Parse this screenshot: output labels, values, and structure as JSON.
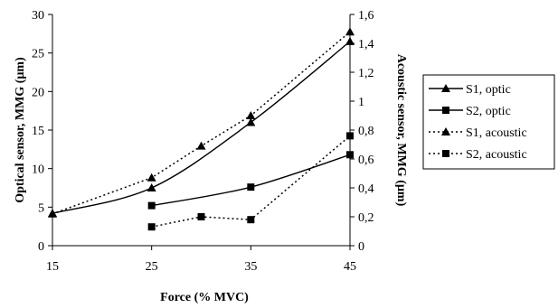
{
  "chart_data": {
    "type": "line",
    "title": "",
    "xlabel": "Force (% MVC)",
    "ylabel_left": "Optical sensor, MMG (µm)",
    "ylabel_right": "Acoustic sensor, MMG (µm)",
    "xlim": [
      15,
      45
    ],
    "x_ticks": [
      "15",
      "25",
      "35",
      "45"
    ],
    "ylim_left": [
      0,
      30
    ],
    "y_ticks_left": [
      "0",
      "5",
      "10",
      "15",
      "20",
      "25",
      "30"
    ],
    "ylim_right": [
      0,
      1.6
    ],
    "y_ticks_right": [
      "0",
      "0,2",
      "0,4",
      "0,6",
      "0,8",
      "1",
      "1,2",
      "1,4",
      "1,6"
    ],
    "grid": false,
    "legend_position": "right",
    "series": [
      {
        "name": "S1, optic",
        "axis": "left",
        "marker": "triangle",
        "dash": "solid",
        "smooth": true,
        "x": [
          15,
          25,
          35,
          45
        ],
        "y": [
          4.2,
          7.5,
          16.0,
          26.5
        ]
      },
      {
        "name": "S2, optic",
        "axis": "left",
        "marker": "square",
        "dash": "solid",
        "smooth": true,
        "x": [
          25,
          35,
          45
        ],
        "y": [
          5.2,
          7.6,
          11.8
        ]
      },
      {
        "name": "S1, acoustic",
        "axis": "right",
        "marker": "triangle",
        "dash": "dotted",
        "smooth": false,
        "x": [
          15,
          25,
          30,
          35,
          45
        ],
        "y": [
          0.22,
          0.47,
          0.69,
          0.9,
          1.48
        ]
      },
      {
        "name": "S2, acoustic",
        "axis": "right",
        "marker": "square",
        "dash": "dotted",
        "smooth": false,
        "x": [
          25,
          30,
          35,
          45
        ],
        "y": [
          0.13,
          0.2,
          0.18,
          0.76
        ]
      }
    ]
  }
}
